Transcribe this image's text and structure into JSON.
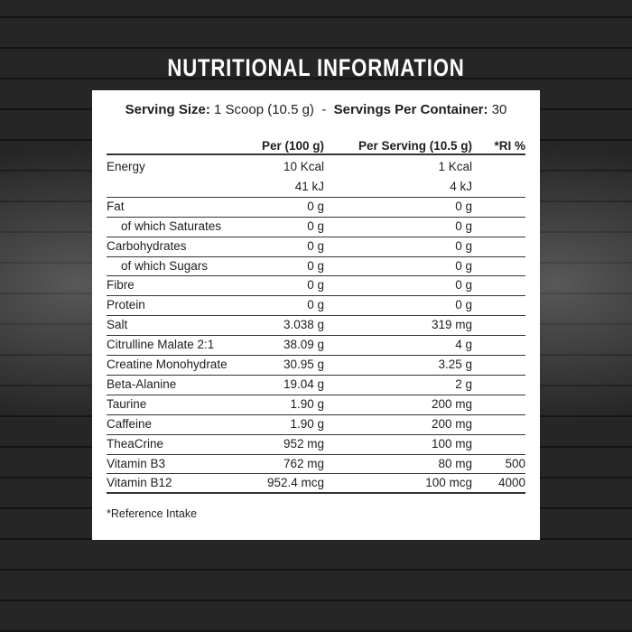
{
  "header": {
    "title": "NUTRITIONAL INFORMATION"
  },
  "serving": {
    "size_label": "Serving Size:",
    "size_value": "1 Scoop (10.5 g)",
    "separator": "-",
    "count_label": "Servings Per Container:",
    "count_value": "30"
  },
  "table": {
    "columns": [
      "Per (100 g)",
      "Per Serving (10.5 g)",
      "*RI %"
    ],
    "rows": [
      {
        "name": "Energy",
        "per_100g": "10 Kcal",
        "per_serving": "1 Kcal"
      },
      {
        "per_100g": "41 kJ",
        "per_serving": "4 kJ"
      },
      {
        "name": "Fat",
        "per_100g": "0 g",
        "per_serving": "0 g"
      },
      {
        "name": "of which Saturates",
        "per_100g": "0 g",
        "per_serving": "0 g",
        "indent": true
      },
      {
        "name": "Carbohydrates",
        "per_100g": "0 g",
        "per_serving": "0 g"
      },
      {
        "name": "of which Sugars",
        "per_100g": "0 g",
        "per_serving": "0 g",
        "indent": true
      },
      {
        "name": "Fibre",
        "per_100g": "0 g",
        "per_serving": "0 g"
      },
      {
        "name": "Protein",
        "per_100g": "0 g",
        "per_serving": "0 g"
      },
      {
        "name": "Salt",
        "per_100g": "3.038 g",
        "per_serving": "319 mg"
      },
      {
        "name": "Citrulline Malate 2:1",
        "per_100g": "38.09 g",
        "per_serving": "4 g"
      },
      {
        "name": "Creatine Monohydrate",
        "per_100g": "30.95 g",
        "per_serving": "3.25 g"
      },
      {
        "name": "Beta-Alanine",
        "per_100g": "19.04 g",
        "per_serving": "2 g"
      },
      {
        "name": "Taurine",
        "per_100g": "1.90 g",
        "per_serving": "200 mg"
      },
      {
        "name": "Caffeine",
        "per_100g": "1.90 g",
        "per_serving": "200 mg"
      },
      {
        "name": "TheaCrine",
        "per_100g": "952 mg",
        "per_serving": "100 mg"
      },
      {
        "name": "Vitamin B3",
        "per_100g": "762 mg",
        "per_serving": "80 mg",
        "ri": "500"
      },
      {
        "name": "Vitamin B12",
        "per_100g": "952.4 mcg",
        "per_serving": "100 mcg",
        "ri": "4000"
      }
    ]
  },
  "footnote": "*Reference Intake"
}
